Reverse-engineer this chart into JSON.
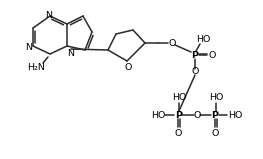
{
  "bg_color": "#ffffff",
  "line_color": "#2a2a2a",
  "text_color": "#000000",
  "lw": 1.1,
  "fs": 6.8,
  "figsize": [
    2.63,
    1.59
  ],
  "dpi": 100,
  "xlim": [
    0,
    263
  ],
  "ylim": [
    0,
    159
  ]
}
